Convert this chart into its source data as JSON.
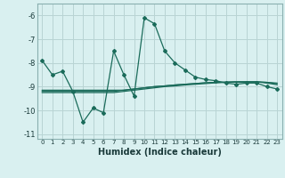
{
  "x": [
    0,
    1,
    2,
    3,
    4,
    5,
    6,
    7,
    8,
    9,
    10,
    11,
    12,
    13,
    14,
    15,
    16,
    17,
    18,
    19,
    20,
    21,
    22,
    23
  ],
  "main_line": [
    -7.9,
    -8.5,
    -8.35,
    -9.2,
    -10.5,
    -9.9,
    -10.1,
    -7.5,
    -8.5,
    -9.4,
    -6.1,
    -6.35,
    -7.5,
    -8.0,
    -8.3,
    -8.6,
    -8.7,
    -8.75,
    -8.85,
    -8.9,
    -8.85,
    -8.85,
    -9.0,
    -9.1
  ],
  "flat_lines": [
    [
      -9.15,
      -9.15,
      -9.15,
      -9.15,
      -9.15,
      -9.15,
      -9.15,
      -9.15,
      -9.15,
      -9.1,
      -9.05,
      -9.0,
      -8.97,
      -8.93,
      -8.9,
      -8.87,
      -8.84,
      -8.82,
      -8.81,
      -8.8,
      -8.8,
      -8.8,
      -8.82,
      -8.85
    ],
    [
      -9.2,
      -9.2,
      -9.2,
      -9.2,
      -9.2,
      -9.2,
      -9.2,
      -9.2,
      -9.15,
      -9.1,
      -9.05,
      -9.0,
      -8.97,
      -8.93,
      -8.9,
      -8.87,
      -8.84,
      -8.82,
      -8.81,
      -8.8,
      -8.8,
      -8.8,
      -8.82,
      -8.88
    ],
    [
      -9.25,
      -9.25,
      -9.25,
      -9.25,
      -9.25,
      -9.25,
      -9.25,
      -9.25,
      -9.2,
      -9.15,
      -9.1,
      -9.05,
      -9.0,
      -8.97,
      -8.93,
      -8.9,
      -8.87,
      -8.84,
      -8.82,
      -8.81,
      -8.8,
      -8.8,
      -8.85,
      -8.92
    ]
  ],
  "line_color": "#1a6b5a",
  "bg_color": "#d9f0f0",
  "grid_color": "#b8d4d4",
  "xlabel": "Humidex (Indice chaleur)",
  "ylim": [
    -11.2,
    -5.5
  ],
  "yticks": [
    -11,
    -10,
    -9,
    -8,
    -7,
    -6
  ],
  "xtick_labels": [
    "0",
    "1",
    "2",
    "3",
    "4",
    "5",
    "6",
    "7",
    "8",
    "9",
    "10",
    "11",
    "12",
    "13",
    "14",
    "15",
    "16",
    "17",
    "18",
    "19",
    "20",
    "21",
    "22",
    "23"
  ]
}
